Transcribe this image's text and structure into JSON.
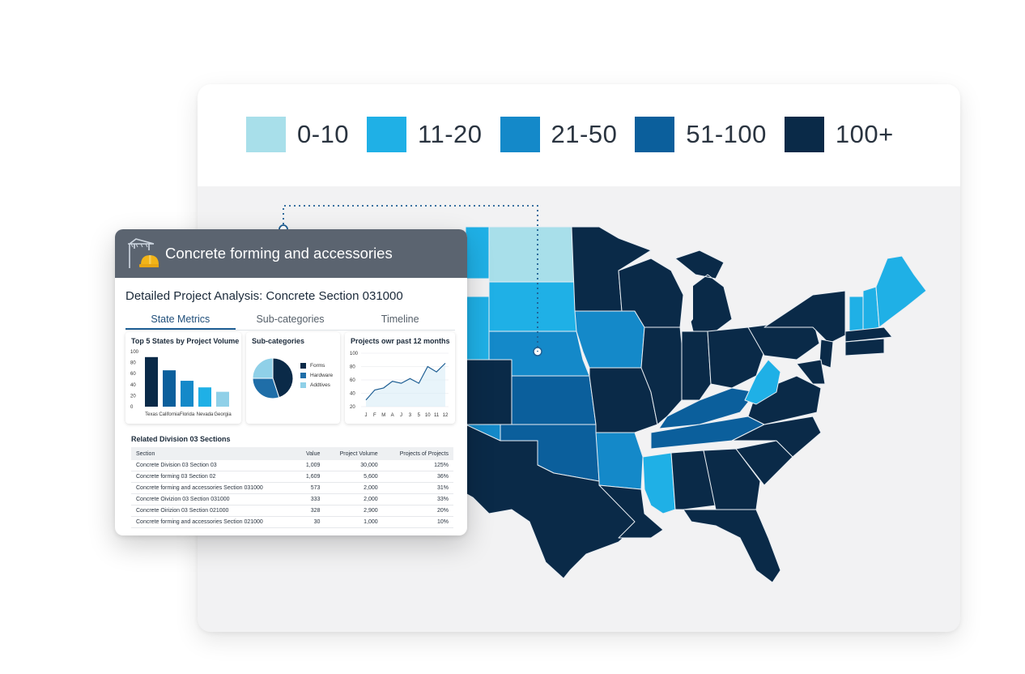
{
  "legend": [
    {
      "label": "0-10",
      "color": "#a8dfea"
    },
    {
      "label": "11-20",
      "color": "#1fb0e6"
    },
    {
      "label": "21-50",
      "color": "#1489c9"
    },
    {
      "label": "51-100",
      "color": "#0b5f9c"
    },
    {
      "label": "100+",
      "color": "#0a2a48"
    }
  ],
  "panel": {
    "title": "Concrete forming and accessories",
    "subtitle": "Detailed Project Analysis: Concrete Section 031000",
    "tabs": [
      "State Metrics",
      "Sub-categories",
      "Timeline"
    ],
    "active_tab": "State Metrics"
  },
  "top_states": {
    "title": "Top 5 States by Project Volume",
    "y_ticks": [
      "100",
      "80",
      "60",
      "40",
      "20",
      "0"
    ],
    "categories": [
      "Texas",
      "California",
      "Florida",
      "Nevada",
      "Georgia"
    ],
    "values": [
      90,
      66,
      47,
      35,
      27
    ]
  },
  "subcategories": {
    "title": "Sub-categories",
    "items": [
      {
        "label": "Forms",
        "value": 45,
        "color": "#0a2a48"
      },
      {
        "label": "Hardware",
        "value": 30,
        "color": "#1f6ea8"
      },
      {
        "label": "Addtives",
        "value": 25,
        "color": "#8fd0e8"
      }
    ]
  },
  "timeline": {
    "title": "Projects owr past 12 months",
    "y_ticks": [
      "100",
      "80",
      "60",
      "40",
      "20"
    ],
    "x_labels": [
      "J",
      "F",
      "M",
      "A",
      "J",
      "3",
      "5",
      "10",
      "11",
      "12"
    ],
    "values": [
      30,
      45,
      48,
      58,
      55,
      62,
      55,
      80,
      72,
      85
    ]
  },
  "related": {
    "title": "Related Division 03 Sections",
    "columns": [
      "Section",
      "Value",
      "Project Volume",
      "Projects of Projects"
    ],
    "rows": [
      [
        "Concrete Division 03 Section 03",
        "1,009",
        "30,000",
        "125%"
      ],
      [
        "Concrete forming 03 Section 02",
        "1,609",
        "5,600",
        "36%"
      ],
      [
        "Concrete forming and accessories Section 031000",
        "573",
        "2,000",
        "31%"
      ],
      [
        "Concrete Oivizion 03 Section 031000",
        "333",
        "2,000",
        "33%"
      ],
      [
        "Concrete Oirizion 03 Section 021000",
        "328",
        "2,900",
        "20%"
      ],
      [
        "Concrete forming and accessories Section 021000",
        "30",
        "1,000",
        "10%"
      ]
    ]
  }
}
